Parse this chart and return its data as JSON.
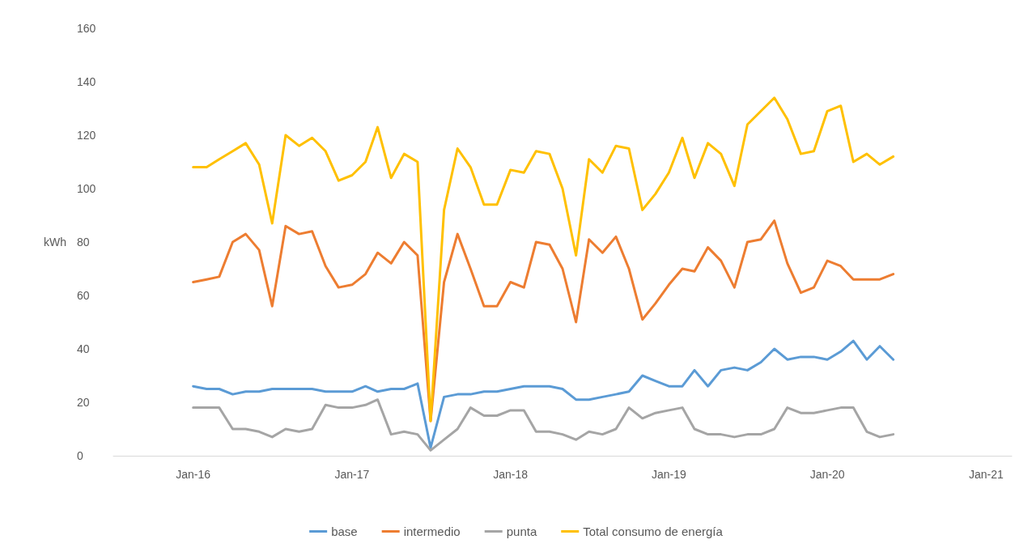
{
  "chart_data": {
    "type": "line",
    "ylabel": "kWh",
    "x": [
      "2016-01",
      "2016-02",
      "2016-03",
      "2016-04",
      "2016-05",
      "2016-06",
      "2016-07",
      "2016-08",
      "2016-09",
      "2016-10",
      "2016-11",
      "2016-12",
      "2017-01",
      "2017-02",
      "2017-03",
      "2017-04",
      "2017-05",
      "2017-06",
      "2017-07",
      "2017-08",
      "2017-09",
      "2017-10",
      "2017-11",
      "2017-12",
      "2018-01",
      "2018-02",
      "2018-03",
      "2018-04",
      "2018-05",
      "2018-06",
      "2018-07",
      "2018-08",
      "2018-09",
      "2018-10",
      "2018-11",
      "2018-12",
      "2019-01",
      "2019-02",
      "2019-03",
      "2019-04",
      "2019-05",
      "2019-06",
      "2019-07",
      "2019-08",
      "2019-09",
      "2019-10",
      "2019-11",
      "2019-12",
      "2020-01",
      "2020-02",
      "2020-03",
      "2020-04",
      "2020-05",
      "2020-06"
    ],
    "series": [
      {
        "name": "base",
        "color": "#5b9bd5",
        "values": [
          26,
          25,
          25,
          23,
          24,
          24,
          25,
          25,
          25,
          25,
          24,
          24,
          24,
          26,
          24,
          25,
          25,
          27,
          3,
          22,
          23,
          23,
          24,
          24,
          25,
          26,
          26,
          26,
          25,
          21,
          21,
          22,
          23,
          24,
          30,
          28,
          26,
          26,
          32,
          26,
          32,
          33,
          32,
          35,
          40,
          36,
          37,
          37,
          36,
          39,
          43,
          36,
          41,
          36
        ]
      },
      {
        "name": "intermedio",
        "color": "#ed7d31",
        "values": [
          65,
          66,
          67,
          80,
          83,
          77,
          56,
          86,
          83,
          84,
          71,
          63,
          64,
          68,
          76,
          72,
          80,
          75,
          13,
          65,
          83,
          70,
          56,
          56,
          65,
          63,
          80,
          79,
          70,
          50,
          81,
          76,
          82,
          70,
          51,
          57,
          64,
          70,
          69,
          78,
          73,
          63,
          80,
          81,
          88,
          72,
          61,
          63,
          73,
          71,
          66,
          66,
          66,
          68
        ]
      },
      {
        "name": "punta",
        "color": "#a5a5a5",
        "values": [
          18,
          18,
          18,
          10,
          10,
          9,
          7,
          10,
          9,
          10,
          19,
          18,
          18,
          19,
          21,
          8,
          9,
          8,
          2,
          6,
          10,
          18,
          15,
          15,
          17,
          17,
          9,
          9,
          8,
          6,
          9,
          8,
          10,
          18,
          14,
          16,
          17,
          18,
          10,
          8,
          8,
          7,
          8,
          8,
          10,
          18,
          16,
          16,
          17,
          18,
          18,
          9,
          7,
          8
        ]
      },
      {
        "name": "Total consumo de energía",
        "color": "#ffc000",
        "values": [
          108,
          108,
          111,
          114,
          117,
          109,
          87,
          120,
          116,
          119,
          114,
          103,
          105,
          110,
          123,
          104,
          113,
          110,
          13,
          92,
          115,
          108,
          94,
          94,
          107,
          106,
          114,
          113,
          100,
          75,
          111,
          106,
          116,
          115,
          92,
          98,
          106,
          119,
          104,
          117,
          113,
          101,
          124,
          129,
          134,
          126,
          113,
          114,
          129,
          131,
          110,
          113,
          109,
          112
        ]
      }
    ],
    "xlim": [
      "2015-07",
      "2021-03"
    ],
    "xticks": [
      {
        "value": "2016-01",
        "label": "Jan-16"
      },
      {
        "value": "2017-01",
        "label": "Jan-17"
      },
      {
        "value": "2018-01",
        "label": "Jan-18"
      },
      {
        "value": "2019-01",
        "label": "Jan-19"
      },
      {
        "value": "2020-01",
        "label": "Jan-20"
      },
      {
        "value": "2021-01",
        "label": "Jan-21"
      }
    ],
    "ylim": [
      0,
      160
    ],
    "yticks": [
      0,
      20,
      40,
      60,
      80,
      100,
      120,
      140,
      160
    ],
    "grid": false,
    "legend": "bottom",
    "marker": "none",
    "line_style": "solid"
  }
}
